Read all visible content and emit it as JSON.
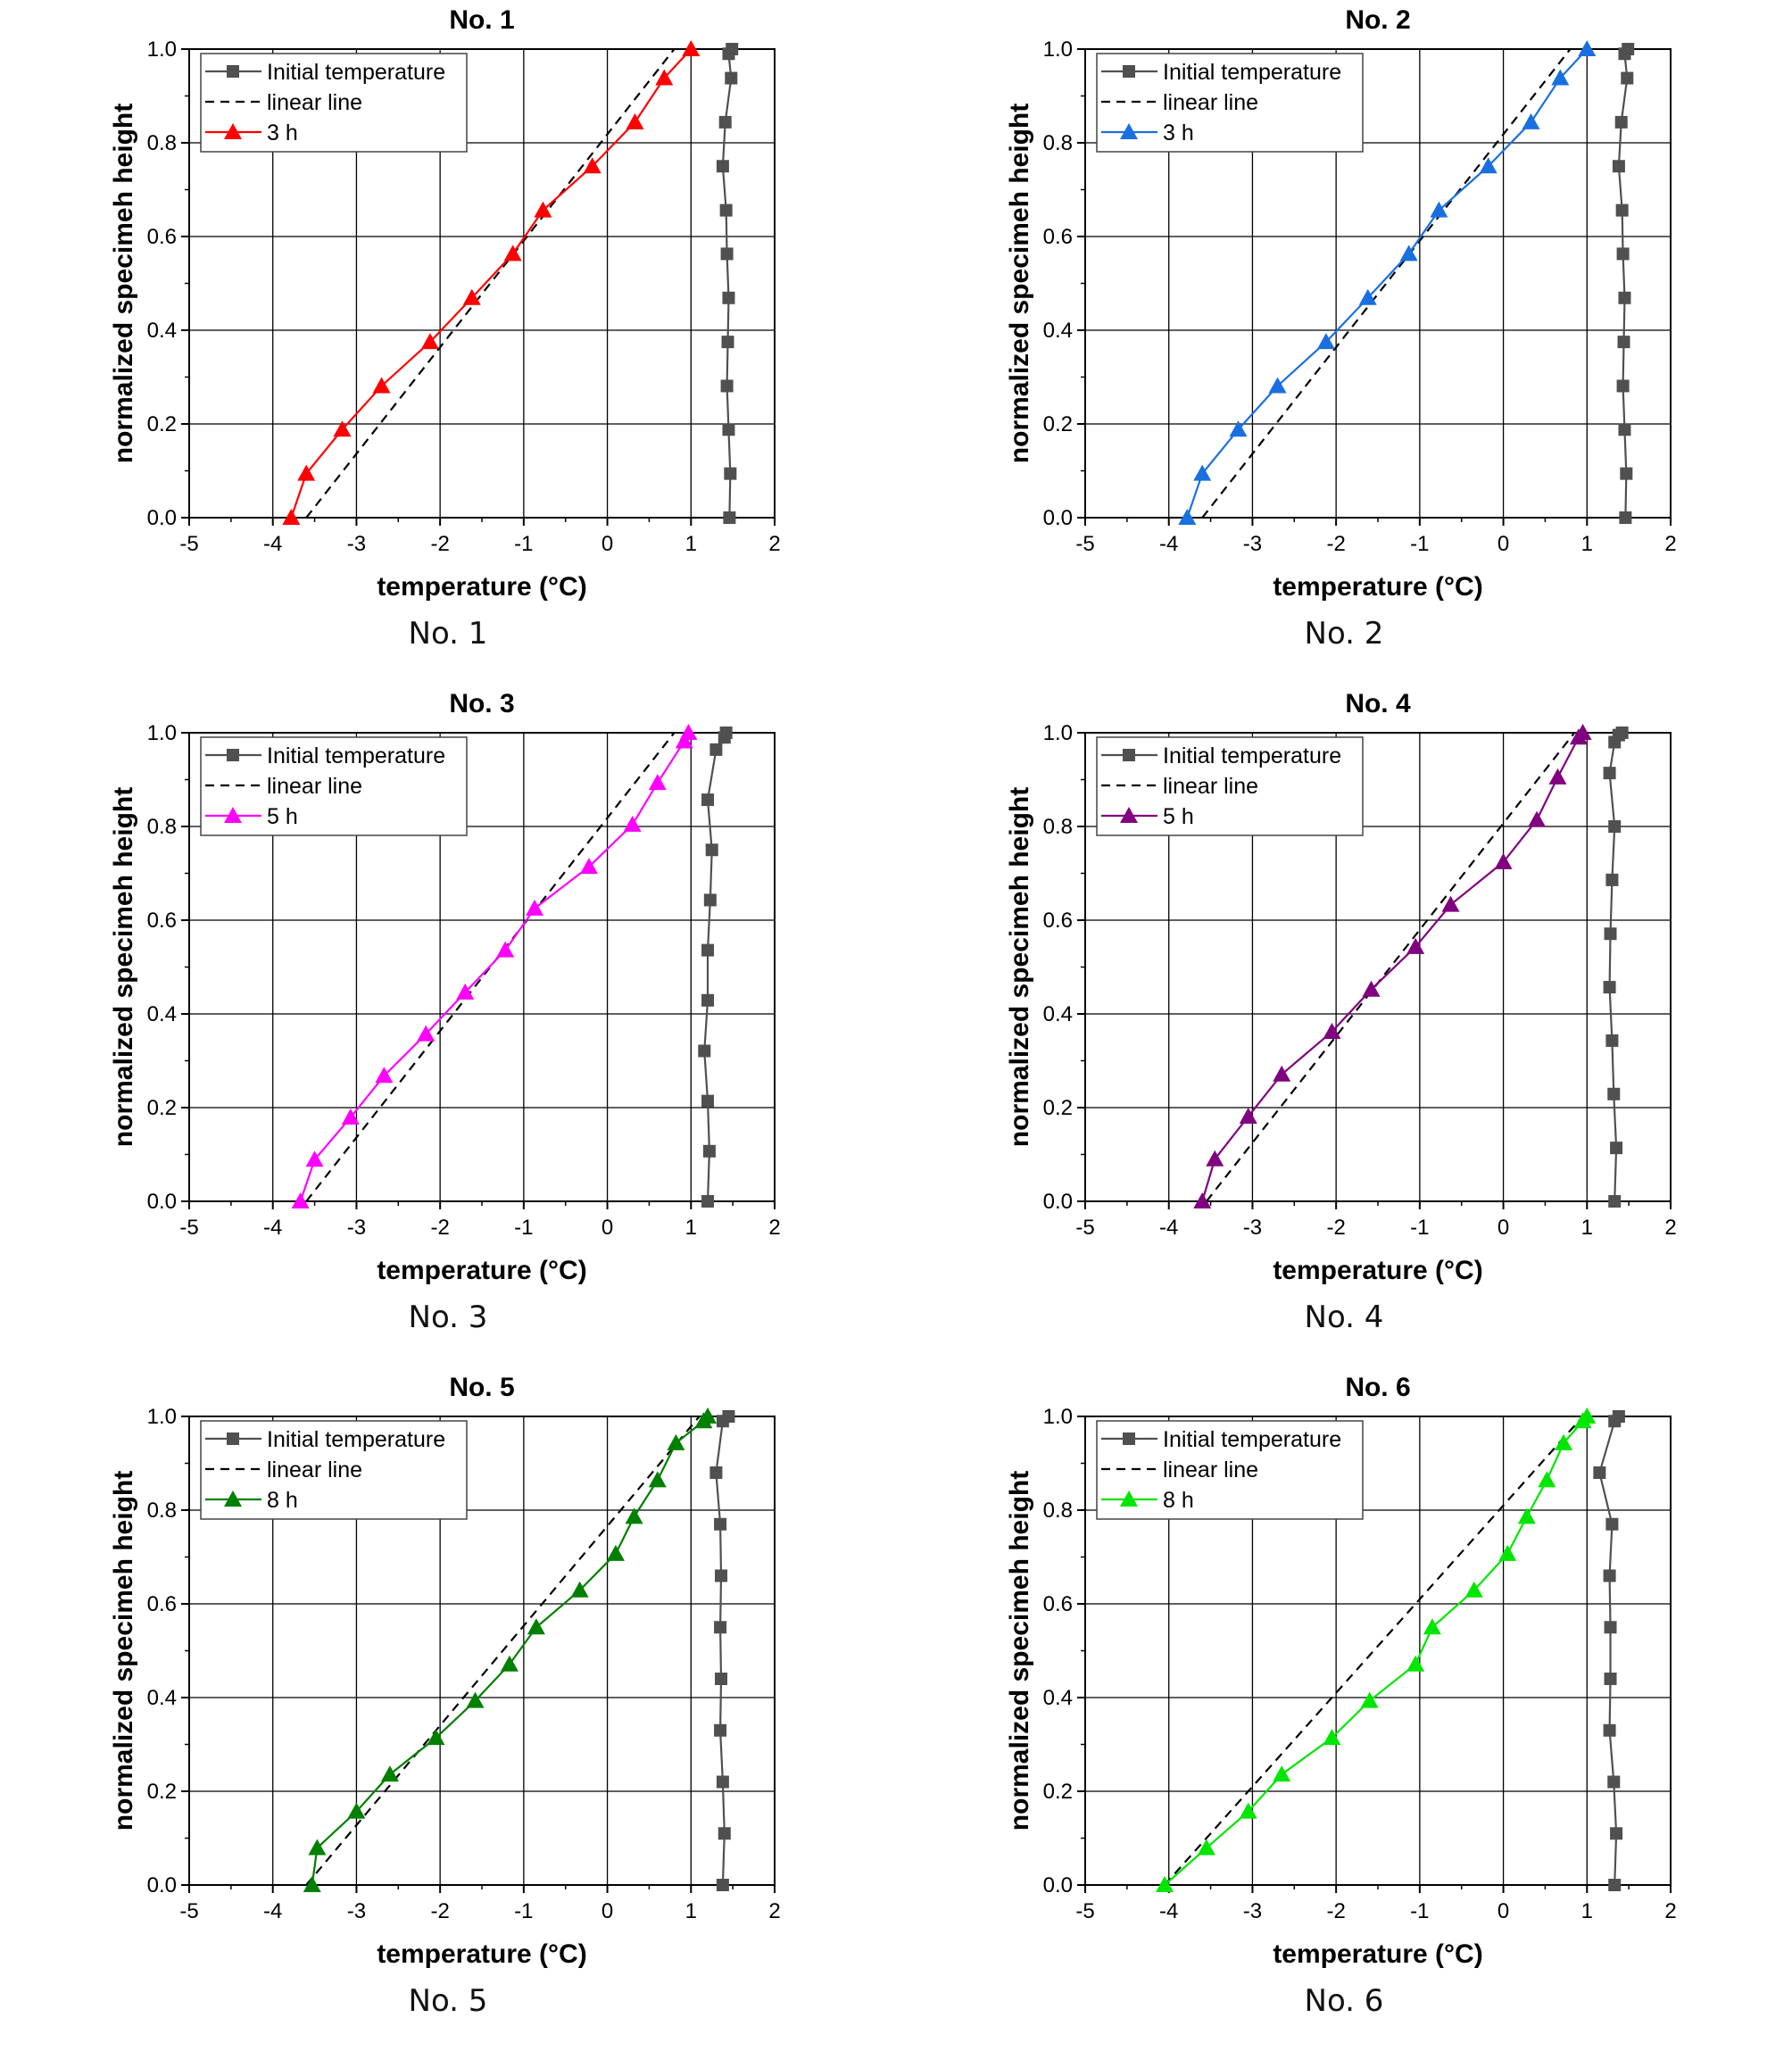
{
  "panels": [
    {
      "caption": "No. 1",
      "chart_data": {
        "type": "line",
        "title": "No. 1",
        "xlabel": "temperature (°C)",
        "ylabel": "normalized specimeh height",
        "xlim": [
          -5,
          2
        ],
        "ylim": [
          0,
          1.0
        ],
        "xticks": [
          "-5",
          "-4",
          "-3",
          "-2",
          "-1",
          "0",
          "1",
          "2"
        ],
        "yticks": [
          "0.0",
          "0.2",
          "0.4",
          "0.6",
          "0.8",
          "1.0"
        ],
        "grid": true,
        "legend_position": "top-left",
        "series": [
          {
            "name": "Initial temperature",
            "color": "#505050",
            "marker": "square",
            "dash": false,
            "x": [
              1.46,
              1.47,
              1.45,
              1.43,
              1.44,
              1.45,
              1.43,
              1.42,
              1.38,
              1.41,
              1.48,
              1.45,
              1.49
            ],
            "y": [
              0.0,
              0.094,
              0.188,
              0.281,
              0.375,
              0.469,
              0.563,
              0.656,
              0.75,
              0.844,
              0.938,
              0.99,
              1.0
            ]
          },
          {
            "name": "linear line",
            "color": "#000000",
            "marker": "none",
            "dash": true,
            "x": [
              -3.6,
              0.8
            ],
            "y": [
              0.0,
              1.0
            ]
          },
          {
            "name": "3 h",
            "color": "#ff0000",
            "marker": "triangle",
            "dash": false,
            "x": [
              -3.78,
              -3.6,
              -3.17,
              -2.7,
              -2.12,
              -1.62,
              -1.13,
              -0.77,
              -0.18,
              0.33,
              0.68,
              1.0
            ],
            "y": [
              0.0,
              0.094,
              0.188,
              0.281,
              0.375,
              0.469,
              0.563,
              0.656,
              0.75,
              0.844,
              0.938,
              1.0
            ]
          }
        ]
      }
    },
    {
      "caption": "No. 2",
      "chart_data": {
        "type": "line",
        "title": "No. 2",
        "xlabel": "temperature (°C)",
        "ylabel": "normalized specimeh height",
        "xlim": [
          -5,
          2
        ],
        "ylim": [
          0,
          1.0
        ],
        "xticks": [
          "-5",
          "-4",
          "-3",
          "-2",
          "-1",
          "0",
          "1",
          "2"
        ],
        "yticks": [
          "0.0",
          "0.2",
          "0.4",
          "0.6",
          "0.8",
          "1.0"
        ],
        "grid": true,
        "legend_position": "top-left",
        "series": [
          {
            "name": "Initial temperature",
            "color": "#505050",
            "marker": "square",
            "dash": false,
            "x": [
              1.46,
              1.47,
              1.45,
              1.43,
              1.44,
              1.45,
              1.43,
              1.42,
              1.38,
              1.41,
              1.48,
              1.45,
              1.49
            ],
            "y": [
              0.0,
              0.094,
              0.188,
              0.281,
              0.375,
              0.469,
              0.563,
              0.656,
              0.75,
              0.844,
              0.938,
              0.99,
              1.0
            ]
          },
          {
            "name": "linear line",
            "color": "#000000",
            "marker": "none",
            "dash": true,
            "x": [
              -3.6,
              0.8
            ],
            "y": [
              0.0,
              1.0
            ]
          },
          {
            "name": "3 h",
            "color": "#1a6fe0",
            "marker": "triangle",
            "dash": false,
            "x": [
              -3.78,
              -3.6,
              -3.17,
              -2.7,
              -2.12,
              -1.62,
              -1.13,
              -0.77,
              -0.18,
              0.33,
              0.68,
              1.0
            ],
            "y": [
              0.0,
              0.094,
              0.188,
              0.281,
              0.375,
              0.469,
              0.563,
              0.656,
              0.75,
              0.844,
              0.938,
              1.0
            ]
          }
        ]
      }
    },
    {
      "caption": "No. 3",
      "chart_data": {
        "type": "line",
        "title": "No. 3",
        "xlabel": "temperature (°C)",
        "ylabel": "normalized specimeh height",
        "xlim": [
          -5,
          2
        ],
        "ylim": [
          0,
          1.0
        ],
        "xticks": [
          "-5",
          "-4",
          "-3",
          "-2",
          "-1",
          "0",
          "1",
          "2"
        ],
        "yticks": [
          "0.0",
          "0.2",
          "0.4",
          "0.6",
          "0.8",
          "1.0"
        ],
        "grid": true,
        "legend_position": "top-left",
        "series": [
          {
            "name": "Initial temperature",
            "color": "#505050",
            "marker": "square",
            "dash": false,
            "x": [
              1.2,
              1.22,
              1.2,
              1.16,
              1.2,
              1.2,
              1.23,
              1.25,
              1.2,
              1.3,
              1.4,
              1.42
            ],
            "y": [
              0.0,
              0.107,
              0.214,
              0.321,
              0.429,
              0.536,
              0.643,
              0.75,
              0.857,
              0.964,
              0.99,
              1.0
            ]
          },
          {
            "name": "linear line",
            "color": "#000000",
            "marker": "none",
            "dash": true,
            "x": [
              -3.6,
              0.8
            ],
            "y": [
              0.0,
              1.0
            ]
          },
          {
            "name": "5 h",
            "color": "#ff00ff",
            "marker": "triangle",
            "dash": false,
            "x": [
              -3.67,
              -3.5,
              -3.07,
              -2.67,
              -2.17,
              -1.7,
              -1.22,
              -0.87,
              -0.22,
              0.3,
              0.6,
              0.92,
              0.97
            ],
            "y": [
              0.0,
              0.089,
              0.179,
              0.268,
              0.357,
              0.446,
              0.536,
              0.625,
              0.714,
              0.804,
              0.893,
              0.982,
              1.0
            ]
          }
        ]
      }
    },
    {
      "caption": "No. 4",
      "chart_data": {
        "type": "line",
        "title": "No. 4",
        "xlabel": "temperature (°C)",
        "ylabel": "normalized specimeh height",
        "xlim": [
          -5,
          2
        ],
        "ylim": [
          0,
          1.0
        ],
        "xticks": [
          "-5",
          "-4",
          "-3",
          "-2",
          "-1",
          "0",
          "1",
          "2"
        ],
        "yticks": [
          "0.0",
          "0.2",
          "0.4",
          "0.6",
          "0.8",
          "1.0"
        ],
        "grid": true,
        "legend_position": "top-left",
        "series": [
          {
            "name": "Initial temperature",
            "color": "#505050",
            "marker": "square",
            "dash": false,
            "x": [
              1.33,
              1.35,
              1.32,
              1.3,
              1.27,
              1.28,
              1.3,
              1.33,
              1.27,
              1.33,
              1.38,
              1.42
            ],
            "y": [
              0.0,
              0.114,
              0.229,
              0.343,
              0.457,
              0.571,
              0.686,
              0.8,
              0.914,
              0.98,
              0.995,
              1.0
            ]
          },
          {
            "name": "linear line",
            "color": "#000000",
            "marker": "none",
            "dash": true,
            "x": [
              -3.55,
              0.85
            ],
            "y": [
              0.0,
              1.0
            ]
          },
          {
            "name": "5 h",
            "color": "#800080",
            "marker": "triangle",
            "dash": false,
            "x": [
              -3.6,
              -3.45,
              -3.05,
              -2.65,
              -2.05,
              -1.58,
              -1.05,
              -0.63,
              0.0,
              0.4,
              0.65,
              0.9,
              0.95
            ],
            "y": [
              0.0,
              0.09,
              0.181,
              0.271,
              0.362,
              0.452,
              0.543,
              0.633,
              0.724,
              0.814,
              0.905,
              0.99,
              1.0
            ]
          }
        ]
      }
    },
    {
      "caption": "No. 5",
      "chart_data": {
        "type": "line",
        "title": "No. 5",
        "xlabel": "temperature (°C)",
        "ylabel": "normalized specimeh height",
        "xlim": [
          -5,
          2
        ],
        "ylim": [
          0,
          1.0
        ],
        "xticks": [
          "-5",
          "-4",
          "-3",
          "-2",
          "-1",
          "0",
          "1",
          "2"
        ],
        "yticks": [
          "0.0",
          "0.2",
          "0.4",
          "0.6",
          "0.8",
          "1.0"
        ],
        "grid": true,
        "legend_position": "top-left",
        "series": [
          {
            "name": "Initial temperature",
            "color": "#505050",
            "marker": "square",
            "dash": false,
            "x": [
              1.38,
              1.4,
              1.38,
              1.35,
              1.36,
              1.35,
              1.36,
              1.35,
              1.3,
              1.38,
              1.45
            ],
            "y": [
              0.0,
              0.11,
              0.22,
              0.33,
              0.44,
              0.55,
              0.66,
              0.77,
              0.88,
              0.99,
              1.0
            ]
          },
          {
            "name": "linear line",
            "color": "#000000",
            "marker": "none",
            "dash": true,
            "x": [
              -3.6,
              1.1
            ],
            "y": [
              0.0,
              1.0
            ]
          },
          {
            "name": "8 h",
            "color": "#008000",
            "marker": "triangle",
            "dash": false,
            "x": [
              -3.53,
              -3.47,
              -3.0,
              -2.6,
              -2.05,
              -1.58,
              -1.17,
              -0.85,
              -0.33,
              0.1,
              0.32,
              0.6,
              0.82,
              1.15,
              1.2
            ],
            "y": [
              0.0,
              0.079,
              0.157,
              0.236,
              0.314,
              0.393,
              0.471,
              0.55,
              0.629,
              0.707,
              0.786,
              0.864,
              0.943,
              0.99,
              1.0
            ]
          }
        ]
      }
    },
    {
      "caption": "No. 6",
      "chart_data": {
        "type": "line",
        "title": "No. 6",
        "xlabel": "temperature (°C)",
        "ylabel": "normalized specimeh height",
        "xlim": [
          -5,
          2
        ],
        "ylim": [
          0,
          1.0
        ],
        "xticks": [
          "-5",
          "-4",
          "-3",
          "-2",
          "-1",
          "0",
          "1",
          "2"
        ],
        "yticks": [
          "0.0",
          "0.2",
          "0.4",
          "0.6",
          "0.8",
          "1.0"
        ],
        "grid": true,
        "legend_position": "top-left",
        "series": [
          {
            "name": "Initial temperature",
            "color": "#505050",
            "marker": "square",
            "dash": false,
            "x": [
              1.33,
              1.35,
              1.32,
              1.27,
              1.28,
              1.28,
              1.27,
              1.3,
              1.15,
              1.33,
              1.38
            ],
            "y": [
              0.0,
              0.11,
              0.22,
              0.33,
              0.44,
              0.55,
              0.66,
              0.77,
              0.88,
              0.99,
              1.0
            ]
          },
          {
            "name": "linear line",
            "color": "#000000",
            "marker": "none",
            "dash": true,
            "x": [
              -4.05,
              0.95
            ],
            "y": [
              0.0,
              1.0
            ]
          },
          {
            "name": "8 h",
            "color": "#00e600",
            "marker": "triangle",
            "dash": false,
            "x": [
              -4.05,
              -3.55,
              -3.05,
              -2.65,
              -2.05,
              -1.6,
              -1.05,
              -0.85,
              -0.35,
              0.05,
              0.28,
              0.52,
              0.72,
              0.95,
              1.0
            ],
            "y": [
              0.0,
              0.079,
              0.157,
              0.236,
              0.314,
              0.393,
              0.471,
              0.55,
              0.629,
              0.707,
              0.786,
              0.864,
              0.943,
              0.99,
              1.0
            ]
          }
        ]
      }
    }
  ]
}
